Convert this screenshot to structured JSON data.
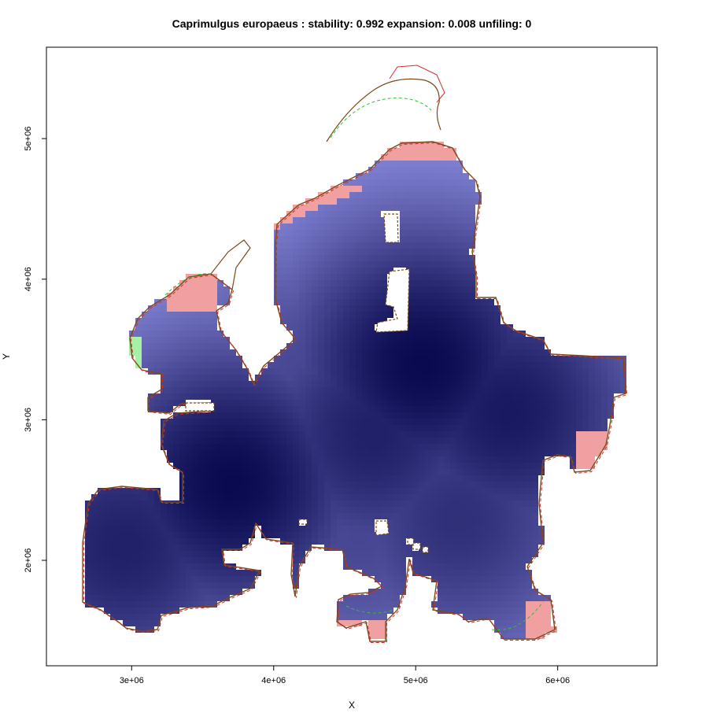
{
  "chart_data": {
    "type": "heatmap",
    "title": "Caprimulgus europaeus : stability: 0.992 expansion: 0.008 unfiling: 0",
    "xlabel": "X",
    "ylabel": "Y",
    "xlim": [
      2400000,
      6700000
    ],
    "ylim": [
      1250000,
      5650000
    ],
    "x_ticks": [
      {
        "value": 3000000,
        "label": "3e+06"
      },
      {
        "value": 4000000,
        "label": "4e+06"
      },
      {
        "value": 5000000,
        "label": "5e+06"
      },
      {
        "value": 6000000,
        "label": "6e+06"
      }
    ],
    "y_ticks": [
      {
        "value": 2000000,
        "label": "2e+06"
      },
      {
        "value": 3000000,
        "label": "3e+06"
      },
      {
        "value": 4000000,
        "label": "4e+06"
      },
      {
        "value": 5000000,
        "label": "5e+06"
      }
    ],
    "colors": {
      "stability_high": "#0a0a50",
      "stability_low": "#a0a0f5",
      "expansion": "#f0a0a0",
      "unfilling": "#a8f0a8",
      "outline_present": "#7a4a1a",
      "outline_future": "#cc3030",
      "outline_green": "#30c030"
    },
    "hotspots": [
      {
        "x": 3700000,
        "y": 2550000,
        "w": 1.0
      },
      {
        "x": 2950000,
        "y": 2100000,
        "w": 0.85
      },
      {
        "x": 5050000,
        "y": 3400000,
        "w": 1.0
      },
      {
        "x": 5650000,
        "y": 3050000,
        "w": 0.9
      },
      {
        "x": 4700000,
        "y": 2900000,
        "w": 0.85
      },
      {
        "x": 5300000,
        "y": 2300000,
        "w": 0.75
      },
      {
        "x": 4250000,
        "y": 3300000,
        "w": 0.6
      },
      {
        "x": 4600000,
        "y": 2200000,
        "w": 0.6
      }
    ]
  }
}
